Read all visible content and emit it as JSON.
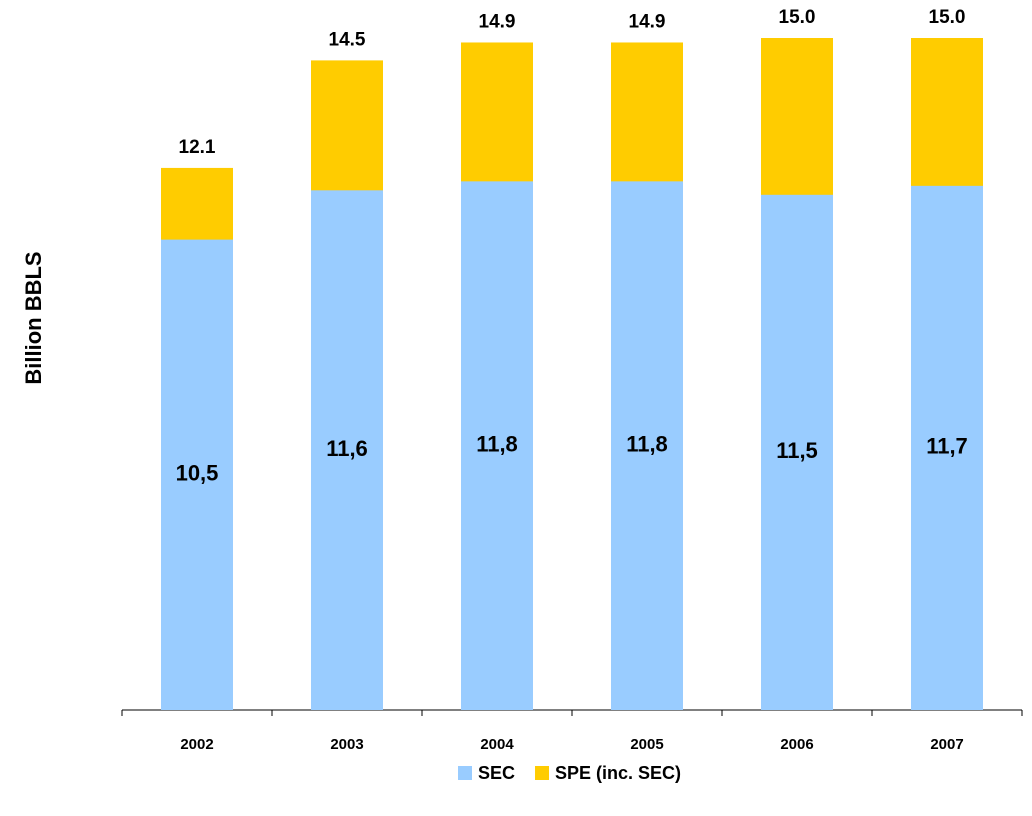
{
  "chart_data": {
    "type": "bar",
    "y_label": "Billion BBLS",
    "categories": [
      "2002",
      "2003",
      "2004",
      "2005",
      "2006",
      "2007"
    ],
    "series": [
      {
        "name": "SPE (inc. SEC)",
        "color": "#ffcc00",
        "values": [
          12.1,
          14.5,
          14.9,
          14.9,
          15.0,
          15.0
        ],
        "value_labels": [
          "12.1",
          "14.5",
          "14.9",
          "14.9",
          "15.0",
          "15.0"
        ]
      },
      {
        "name": "SEC",
        "color": "#99ccff",
        "values": [
          10.5,
          11.6,
          11.8,
          11.8,
          11.5,
          11.7
        ],
        "value_labels": [
          "10,5",
          "11,6",
          "11,8",
          "11,8",
          "11,5",
          "11,7"
        ]
      }
    ],
    "legend": "bottom"
  }
}
